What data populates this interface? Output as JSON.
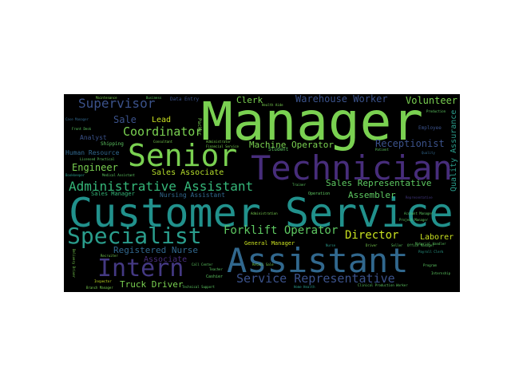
{
  "palette": {
    "lime": "#7ad151",
    "green": "#5ec962",
    "teal": "#21918c",
    "teal2": "#2a9d8c",
    "blue": "#3b528b",
    "slate": "#31688e",
    "purple": "#472d7b",
    "violet": "#443983",
    "yellow": "#c8e020",
    "gold": "#b5de2b",
    "mint": "#35b779"
  },
  "words": {
    "manager": "Manager",
    "customer_service": "Customer Service",
    "technician": "Technician",
    "assistant": "Assistant",
    "senior": "Senior",
    "specialist": "Specialist",
    "intern": "Intern",
    "administrative_assistant": "Administrative Assistant",
    "service_representative": "Service Representative",
    "forklift_operator": "Forklift Operator",
    "director": "Director",
    "supervisor": "Supervisor",
    "coordinator": "Coordinator",
    "warehouse_worker": "Warehouse Worker",
    "volunteer": "Volunteer",
    "receptionist": "Receptionist",
    "sales_representative": "Sales Representative",
    "machine_operator": "Machine Operator",
    "engineer": "Engineer",
    "registered_nurse": "Registered Nurse",
    "truck_driver": "Truck Driver",
    "sales_associate": "Sales Associate",
    "clerk": "Clerk",
    "sale": "Sale",
    "lead": "Lead",
    "assembler": "Assembler",
    "laborer": "Laborer",
    "associate": "Associate",
    "quality_assurance": "Quality Assurance",
    "analyst": "Analyst",
    "human_resource": "Human Resource",
    "nursing_assistant": "Nursing Assistant",
    "sales_manager": "Sales Manager",
    "general_manager": "General Manager",
    "data_entry": "Data Entry",
    "shipping": "Shipping",
    "packer": "Packer",
    "student": "Student",
    "employee": "Employee",
    "operation": "Operation",
    "cashier": "Cashier",
    "consultant": "Consultant",
    "maintenance": "Maintenance",
    "business": "Business",
    "case_manager": "Case Manager",
    "front_desk": "Front Desk",
    "licensed_practical": "Licensed Practical",
    "medical_assistant": "Medical Assistant",
    "bookkeeper": "Bookkeeper",
    "administrator": "Administrator",
    "financial_service": "Financial Service",
    "retail_sale": "Retail Sale",
    "call_center": "Call Center",
    "teacher": "Teacher",
    "recruiter": "Recruiter",
    "driver": "Driver",
    "seller": "Seller",
    "nurse": "Nurse",
    "office_manager": "Office Manager",
    "project_manager": "Project Manager",
    "payroll_clerk": "Payroll Clerk",
    "internship": "Internship",
    "program": "Program",
    "clinical": "Clinical Production Worker",
    "technical_support": "Technical Support",
    "branch_manager": "Branch Manager",
    "inspector": "Inspector",
    "delivery_driver": "Delivery Driver",
    "home_health": "Home Health",
    "health_aide": "Health Aide",
    "patient": "Patient",
    "trainer": "Trainer",
    "production": "Production",
    "administration": "Administration",
    "material_handler": "Material Handler",
    "account_manager": "Account Manager",
    "quality": "Quality",
    "representative": "Representative"
  }
}
